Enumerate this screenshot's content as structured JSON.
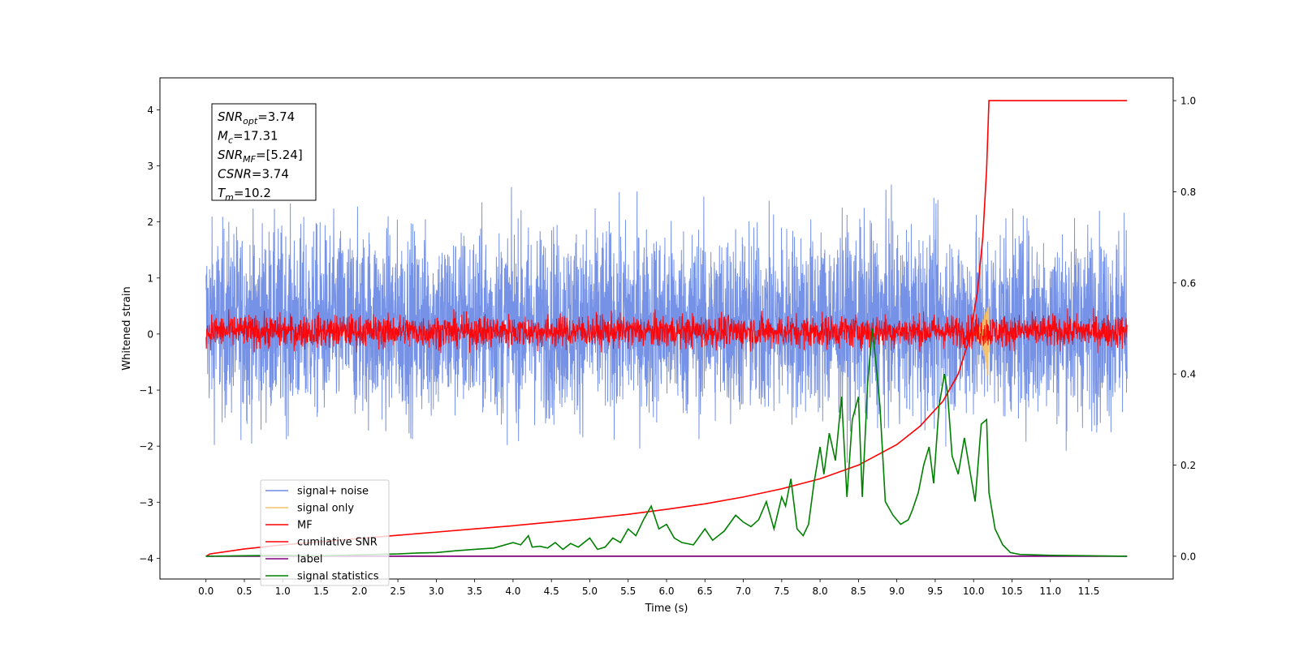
{
  "chart_data": {
    "type": "line",
    "xlabel": "Time (s)",
    "ylabel": "Whitened strain",
    "xlim": [
      -0.6,
      12.6
    ],
    "ylim": [
      -4.37,
      4.57
    ],
    "ylim_right": [
      -0.05,
      1.05
    ],
    "xticks": [
      0.0,
      0.5,
      1.0,
      1.5,
      2.0,
      2.5,
      3.0,
      3.5,
      4.0,
      4.5,
      5.0,
      5.5,
      6.0,
      6.5,
      7.0,
      7.5,
      8.0,
      8.5,
      9.0,
      9.5,
      10.0,
      10.5,
      11.0,
      11.5
    ],
    "xtick_labels": [
      "0.0",
      "0.5",
      "1.0",
      "1.5",
      "2.0",
      "2.5",
      "3.0",
      "3.5",
      "4.0",
      "4.5",
      "5.0",
      "5.5",
      "6.0",
      "6.5",
      "7.0",
      "7.5",
      "8.0",
      "8.5",
      "9.0",
      "9.5",
      "10.0",
      "10.5",
      "11.0",
      "11.5"
    ],
    "yticks": [
      -4,
      -3,
      -2,
      -1,
      0,
      1,
      2,
      3,
      4
    ],
    "ytick_labels": [
      "−4",
      "−3",
      "−2",
      "−1",
      "0",
      "1",
      "2",
      "3",
      "4"
    ],
    "yticks_right": [
      0.0,
      0.2,
      0.4,
      0.6,
      0.8,
      1.0
    ],
    "ytick_right_labels": [
      "0.0",
      "0.2",
      "0.4",
      "0.6",
      "0.8",
      "1.0"
    ],
    "grid": false,
    "legend_position": "lower-left",
    "series": [
      {
        "name": "signal+ noise",
        "axis": "left",
        "color": "#6f8ce6",
        "style": "noise",
        "x_range": [
          0.0,
          12.0
        ],
        "typical_range": [
          -1.8,
          2.2
        ],
        "extreme_range": [
          -3.9,
          4.2
        ]
      },
      {
        "name": "signal only",
        "axis": "left",
        "color": "#f5c26b",
        "style": "chirp",
        "x_range": [
          9.9,
          10.2
        ],
        "peak_time": 10.18,
        "peak_amplitude": 0.65,
        "min_amplitude": -0.85
      },
      {
        "name": "MF",
        "axis": "left",
        "color": "#ff0000",
        "style": "noise",
        "x_range": [
          0.0,
          12.0
        ],
        "typical_range": [
          -0.3,
          0.4
        ],
        "extreme_range": [
          -0.35,
          0.8
        ]
      },
      {
        "name": "cumilative SNR",
        "axis": "right",
        "color": "#ff0000",
        "x": [
          0.0,
          0.05,
          0.5,
          1.0,
          1.5,
          2.0,
          2.5,
          3.0,
          3.5,
          4.0,
          4.5,
          5.0,
          5.5,
          6.0,
          6.5,
          7.0,
          7.5,
          8.0,
          8.5,
          9.0,
          9.3,
          9.6,
          9.8,
          9.95,
          10.05,
          10.12,
          10.17,
          10.2,
          10.25,
          11.0,
          11.5,
          12.0
        ],
        "values": [
          0.0,
          0.005,
          0.016,
          0.025,
          0.032,
          0.039,
          0.046,
          0.053,
          0.06,
          0.067,
          0.075,
          0.083,
          0.092,
          0.103,
          0.115,
          0.13,
          0.148,
          0.17,
          0.2,
          0.245,
          0.285,
          0.34,
          0.4,
          0.48,
          0.58,
          0.7,
          0.85,
          1.0,
          1.0,
          1.0,
          1.0,
          1.0
        ]
      },
      {
        "name": "label",
        "axis": "right",
        "color": "#800080",
        "x": [
          0.0,
          12.0
        ],
        "values": [
          0.0,
          0.0
        ]
      },
      {
        "name": "signal statistics",
        "axis": "right",
        "color": "#008000",
        "x": [
          0.0,
          0.5,
          1.0,
          1.5,
          2.0,
          2.5,
          2.75,
          3.0,
          3.25,
          3.5,
          3.75,
          4.0,
          4.1,
          4.2,
          4.25,
          4.35,
          4.45,
          4.55,
          4.65,
          4.75,
          4.85,
          5.0,
          5.1,
          5.2,
          5.3,
          5.4,
          5.5,
          5.6,
          5.7,
          5.8,
          5.9,
          6.0,
          6.1,
          6.2,
          6.35,
          6.5,
          6.6,
          6.75,
          6.9,
          7.0,
          7.1,
          7.2,
          7.3,
          7.4,
          7.5,
          7.55,
          7.62,
          7.7,
          7.78,
          7.85,
          7.92,
          8.0,
          8.05,
          8.12,
          8.2,
          8.28,
          8.35,
          8.42,
          8.5,
          8.55,
          8.62,
          8.68,
          8.73,
          8.78,
          8.85,
          8.95,
          9.05,
          9.15,
          9.2,
          9.28,
          9.35,
          9.42,
          9.48,
          9.55,
          9.62,
          9.66,
          9.72,
          9.8,
          9.88,
          9.95,
          10.02,
          10.1,
          10.17,
          10.2,
          10.28,
          10.38,
          10.48,
          10.6,
          11.0,
          11.5,
          12.0
        ],
        "values": [
          0.0,
          0.001,
          0.002,
          0.001,
          0.003,
          0.005,
          0.007,
          0.008,
          0.012,
          0.015,
          0.018,
          0.03,
          0.025,
          0.045,
          0.02,
          0.022,
          0.018,
          0.03,
          0.015,
          0.028,
          0.02,
          0.04,
          0.015,
          0.02,
          0.04,
          0.03,
          0.06,
          0.045,
          0.08,
          0.11,
          0.06,
          0.07,
          0.04,
          0.03,
          0.025,
          0.06,
          0.035,
          0.055,
          0.09,
          0.075,
          0.065,
          0.08,
          0.12,
          0.06,
          0.13,
          0.11,
          0.17,
          0.06,
          0.045,
          0.07,
          0.16,
          0.24,
          0.18,
          0.27,
          0.21,
          0.35,
          0.13,
          0.3,
          0.35,
          0.13,
          0.38,
          0.5,
          0.42,
          0.33,
          0.12,
          0.09,
          0.07,
          0.08,
          0.1,
          0.14,
          0.2,
          0.24,
          0.16,
          0.33,
          0.4,
          0.36,
          0.22,
          0.18,
          0.26,
          0.19,
          0.12,
          0.29,
          0.3,
          0.14,
          0.06,
          0.025,
          0.008,
          0.004,
          0.002,
          0.001,
          0.0
        ]
      }
    ],
    "annotation_box": {
      "lines": [
        {
          "main": "SNR",
          "sub": "opt",
          "value": "=3.74"
        },
        {
          "main": "M",
          "sub": "c",
          "value": "=17.31"
        },
        {
          "main": "SNR",
          "sub": "MF",
          "value": "=[5.24]"
        },
        {
          "main": "CSNR",
          "sub": "",
          "value": "=3.74"
        },
        {
          "main": "T",
          "sub": "m",
          "value": "=10.2"
        }
      ]
    }
  }
}
